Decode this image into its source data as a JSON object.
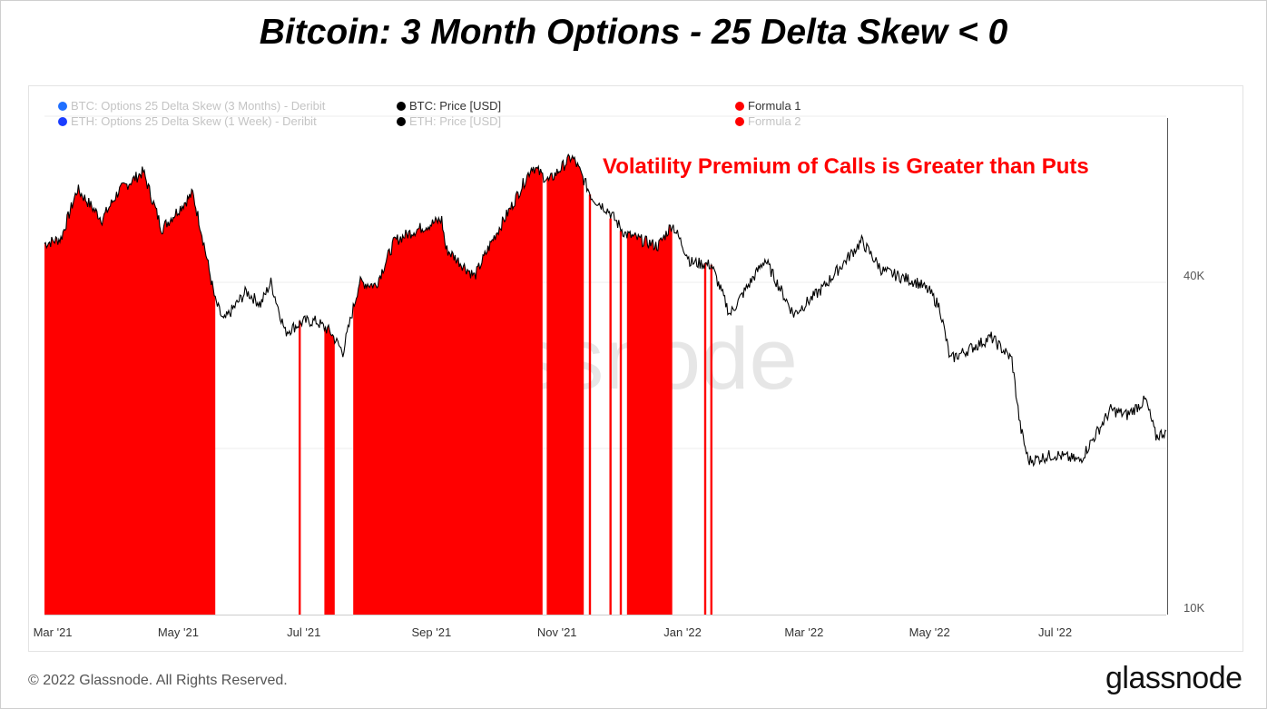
{
  "title": "Bitcoin: 3 Month Options - 25 Delta Skew < 0",
  "annotation": "Volatility Premium of Calls is Greater than Puts",
  "footer": "© 2022 Glassnode. All Rights Reserved.",
  "brand": "glassnode",
  "watermark": "glassnode",
  "legend": [
    {
      "label": "BTC: Options 25 Delta Skew (3 Months) - Deribit",
      "color": "#1f6fff",
      "active": false
    },
    {
      "label": "ETH: Options 25 Delta Skew (1 Week) - Deribit",
      "color": "#1a3dff",
      "active": false
    },
    {
      "label": "BTC: Price [USD]",
      "color": "#000000",
      "active": true
    },
    {
      "label": "ETH: Price [USD]",
      "color": "#000000",
      "active": false
    },
    {
      "label": "Formula 1",
      "color": "#ff0000",
      "active": true
    },
    {
      "label": "Formula 2",
      "color": "#ff0000",
      "active": false
    }
  ],
  "chart_data": {
    "type": "line",
    "y_scale": "log",
    "ylim": [
      10000,
      80000
    ],
    "x_range": [
      "2021-02-25",
      "2022-08-24"
    ],
    "x_ticks": [
      {
        "label": "Mar '21",
        "date": "2021-03-01"
      },
      {
        "label": "May '21",
        "date": "2021-05-01"
      },
      {
        "label": "Jul '21",
        "date": "2021-07-01"
      },
      {
        "label": "Sep '21",
        "date": "2021-09-01"
      },
      {
        "label": "Nov '21",
        "date": "2021-11-01"
      },
      {
        "label": "Jan '22",
        "date": "2022-01-01"
      },
      {
        "label": "Mar '22",
        "date": "2022-03-01"
      },
      {
        "label": "May '22",
        "date": "2022-05-01"
      },
      {
        "label": "Jul '22",
        "date": "2022-07-01"
      }
    ],
    "y_ticks": [
      {
        "label": "40K",
        "value": 40000
      },
      {
        "label": "10K",
        "value": 10000
      }
    ],
    "series": [
      {
        "name": "BTC: Price [USD]",
        "color": "#000000",
        "points": [
          [
            "2021-02-25",
            47000
          ],
          [
            "2021-03-05",
            48000
          ],
          [
            "2021-03-13",
            59000
          ],
          [
            "2021-03-25",
            52000
          ],
          [
            "2021-04-02",
            58500
          ],
          [
            "2021-04-14",
            63500
          ],
          [
            "2021-04-23",
            50000
          ],
          [
            "2021-05-08",
            58000
          ],
          [
            "2021-05-12",
            50000
          ],
          [
            "2021-05-19",
            37000
          ],
          [
            "2021-05-23",
            34000
          ],
          [
            "2021-06-03",
            38500
          ],
          [
            "2021-06-10",
            36500
          ],
          [
            "2021-06-15",
            40000
          ],
          [
            "2021-06-22",
            32500
          ],
          [
            "2021-07-01",
            34000
          ],
          [
            "2021-07-07",
            34000
          ],
          [
            "2021-07-14",
            32500
          ],
          [
            "2021-07-20",
            29900
          ],
          [
            "2021-07-28",
            40000
          ],
          [
            "2021-08-05",
            39500
          ],
          [
            "2021-08-14",
            47500
          ],
          [
            "2021-08-23",
            49500
          ],
          [
            "2021-09-06",
            52000
          ],
          [
            "2021-09-08",
            46000
          ],
          [
            "2021-09-22",
            41000
          ],
          [
            "2021-10-01",
            48000
          ],
          [
            "2021-10-10",
            55000
          ],
          [
            "2021-10-20",
            65000
          ],
          [
            "2021-10-28",
            61000
          ],
          [
            "2021-11-08",
            67500
          ],
          [
            "2021-11-10",
            66000
          ],
          [
            "2021-11-18",
            57000
          ],
          [
            "2021-11-26",
            54000
          ],
          [
            "2021-12-04",
            49000
          ],
          [
            "2021-12-10",
            48000
          ],
          [
            "2021-12-20",
            46500
          ],
          [
            "2021-12-27",
            51000
          ],
          [
            "2022-01-05",
            43500
          ],
          [
            "2022-01-15",
            43000
          ],
          [
            "2022-01-24",
            35000
          ],
          [
            "2022-02-10",
            44000
          ],
          [
            "2022-02-24",
            35000
          ],
          [
            "2022-03-10",
            39000
          ],
          [
            "2022-03-29",
            47500
          ],
          [
            "2022-04-08",
            42000
          ],
          [
            "2022-04-25",
            40000
          ],
          [
            "2022-05-01",
            38500
          ],
          [
            "2022-05-06",
            36000
          ],
          [
            "2022-05-11",
            29000
          ],
          [
            "2022-05-31",
            31800
          ],
          [
            "2022-06-10",
            29000
          ],
          [
            "2022-06-14",
            22000
          ],
          [
            "2022-06-18",
            19000
          ],
          [
            "2022-07-01",
            19500
          ],
          [
            "2022-07-13",
            19000
          ],
          [
            "2022-07-28",
            23500
          ],
          [
            "2022-08-05",
            23000
          ],
          [
            "2022-08-14",
            24500
          ],
          [
            "2022-08-19",
            21000
          ],
          [
            "2022-08-24",
            21500
          ]
        ]
      },
      {
        "name": "Formula 1",
        "color": "#ff0000",
        "render": "shaded periods where BTC 3 month 25 delta skew < 0",
        "periods": [
          [
            "2021-02-25",
            "2021-05-19"
          ],
          [
            "2021-06-29",
            "2021-06-29"
          ],
          [
            "2021-07-11",
            "2021-07-16"
          ],
          [
            "2021-07-25",
            "2021-10-25"
          ],
          [
            "2021-10-27",
            "2021-11-14"
          ],
          [
            "2021-11-17",
            "2021-11-17"
          ],
          [
            "2021-11-27",
            "2021-11-27"
          ],
          [
            "2021-12-02",
            "2021-12-02"
          ],
          [
            "2021-12-05",
            "2021-12-27"
          ],
          [
            "2022-01-12",
            "2022-01-12"
          ],
          [
            "2022-01-15",
            "2022-01-15"
          ]
        ]
      }
    ]
  }
}
